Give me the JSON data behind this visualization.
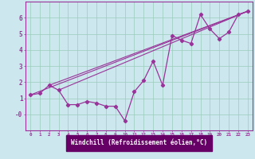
{
  "title": "",
  "xlabel": "Windchill (Refroidissement éolien,°C)",
  "bg_color": "#cce8ee",
  "line_color": "#993399",
  "grid_color": "#99ccbb",
  "x_data": [
    0,
    1,
    2,
    3,
    4,
    5,
    6,
    7,
    8,
    9,
    10,
    11,
    12,
    13,
    14,
    15,
    16,
    17,
    18,
    19,
    20,
    21,
    22,
    23
  ],
  "y_data": [
    1.2,
    1.3,
    1.8,
    1.5,
    0.6,
    0.6,
    0.8,
    0.7,
    0.5,
    0.5,
    -0.4,
    1.4,
    2.1,
    3.3,
    1.8,
    4.9,
    4.6,
    4.4,
    6.2,
    5.3,
    4.7,
    5.1,
    6.2,
    6.4
  ],
  "line1_x": [
    0,
    23
  ],
  "line1_y": [
    1.2,
    6.4
  ],
  "line2_x": [
    2,
    23
  ],
  "line2_y": [
    1.8,
    6.4
  ],
  "line3_x": [
    3,
    23
  ],
  "line3_y": [
    1.5,
    6.4
  ],
  "xlim": [
    -0.5,
    23.5
  ],
  "ylim": [
    -1.0,
    7.0
  ],
  "xlabel_bg": "#660066",
  "xlabel_fg": "#ffffff"
}
